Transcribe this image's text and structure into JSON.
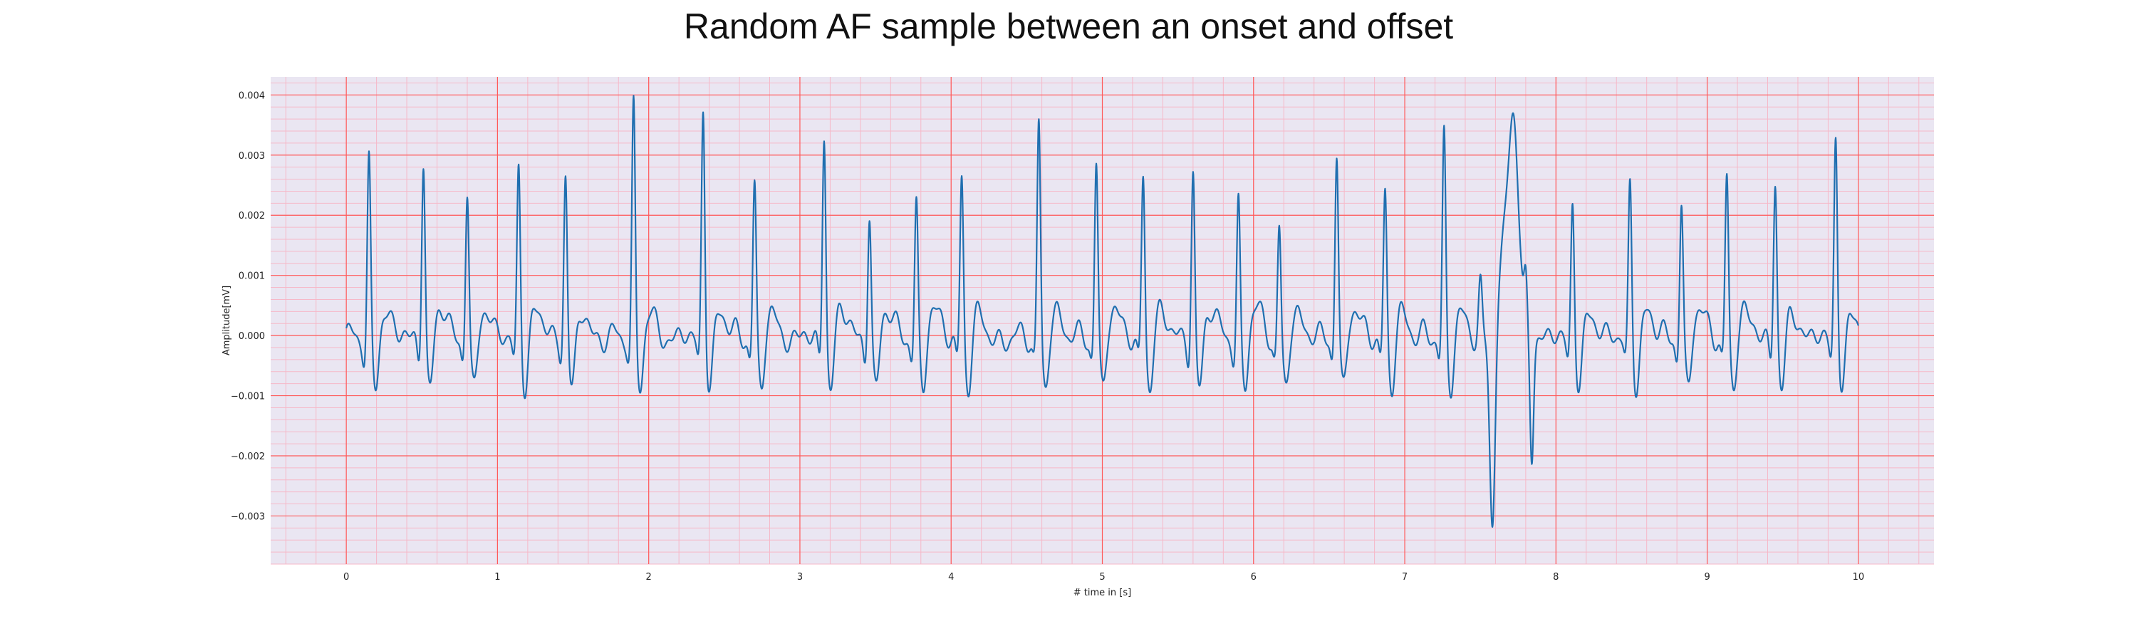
{
  "chart_data": {
    "type": "line",
    "title": "Random AF sample between an onset and offset",
    "xlabel": "# time in [s]",
    "ylabel": "Amplitude[mV]",
    "xlim": [
      -0.5,
      10.5
    ],
    "ylim": [
      -0.0038,
      0.0043
    ],
    "x_ticks": [
      0,
      1,
      2,
      3,
      4,
      5,
      6,
      7,
      8,
      9,
      10
    ],
    "x_tick_labels": [
      "0",
      "1",
      "2",
      "3",
      "4",
      "5",
      "6",
      "7",
      "8",
      "9",
      "10"
    ],
    "y_ticks": [
      -0.003,
      -0.002,
      -0.001,
      0.0,
      0.001,
      0.002,
      0.003,
      0.004
    ],
    "y_tick_labels": [
      "−0.003",
      "−0.002",
      "−0.001",
      "0.000",
      "0.001",
      "0.002",
      "0.003",
      "0.004"
    ],
    "grid": true,
    "colors": {
      "plot_bg": "#eae6f2",
      "major_grid": "#ff5a5a",
      "minor_grid": "#f6b8c8",
      "line": "#1f6fb0"
    },
    "series": [
      {
        "beats": [
          {
            "t": 0.15,
            "peak": 0.00308
          },
          {
            "t": 0.51,
            "peak": 0.00308
          },
          {
            "t": 0.8,
            "peak": 0.00256
          },
          {
            "t": 1.14,
            "peak": 0.00296
          },
          {
            "t": 1.45,
            "peak": 0.00286
          },
          {
            "t": 1.9,
            "peak": 0.00397
          },
          {
            "t": 2.36,
            "peak": 0.00393
          },
          {
            "t": 2.7,
            "peak": 0.0027
          },
          {
            "t": 3.16,
            "peak": 0.00352
          },
          {
            "t": 3.46,
            "peak": 0.0022
          },
          {
            "t": 3.77,
            "peak": 0.00236
          },
          {
            "t": 4.07,
            "peak": 0.0028
          },
          {
            "t": 4.58,
            "peak": 0.00373
          },
          {
            "t": 4.96,
            "peak": 0.00304
          },
          {
            "t": 5.27,
            "peak": 0.00283
          },
          {
            "t": 5.6,
            "peak": 0.0029
          },
          {
            "t": 5.9,
            "peak": 0.00238
          },
          {
            "t": 6.17,
            "peak": 0.00198
          },
          {
            "t": 6.55,
            "peak": 0.0032
          },
          {
            "t": 6.87,
            "peak": 0.00256
          },
          {
            "t": 7.26,
            "peak": 0.0035
          },
          {
            "t": 8.11,
            "peak": 0.0024
          },
          {
            "t": 8.49,
            "peak": 0.00272
          },
          {
            "t": 8.83,
            "peak": 0.00236
          },
          {
            "t": 9.13,
            "peak": 0.00282
          },
          {
            "t": 9.45,
            "peak": 0.00274
          },
          {
            "t": 9.85,
            "peak": 0.0035
          }
        ],
        "events": [
          {
            "t": 7.5,
            "amp": 0.00095,
            "width": 0.012
          },
          {
            "t": 7.58,
            "amp": -0.0034,
            "width": 0.018
          },
          {
            "t": 7.69,
            "amp": 0.00195,
            "width": 0.06
          },
          {
            "t": 7.72,
            "amp": 0.0021,
            "width": 0.03
          },
          {
            "t": 7.8,
            "amp": 0.00065,
            "width": 0.01
          },
          {
            "t": 7.84,
            "amp": -0.00195,
            "width": 0.012
          }
        ],
        "baseline": -0.0001
      }
    ]
  }
}
